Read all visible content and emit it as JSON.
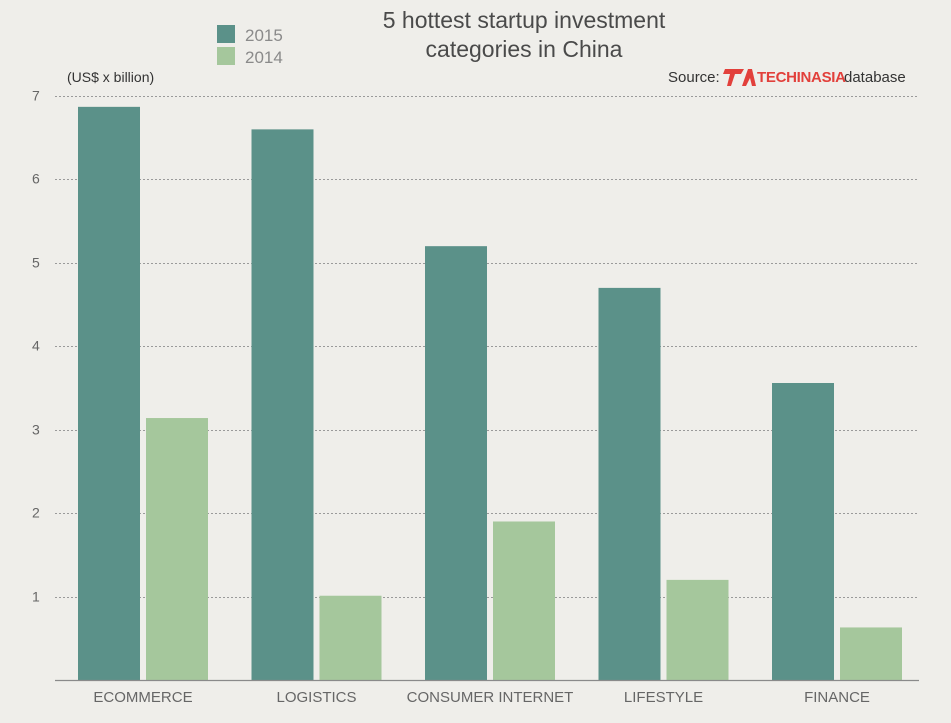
{
  "chart_data": {
    "type": "bar",
    "title_lines": [
      "5 hottest startup investment",
      "categories in China"
    ],
    "unit_label": "(US$ x billion)",
    "source": {
      "prefix": "Source:",
      "logo_text": "TECHINASIA",
      "suffix": "database"
    },
    "categories": [
      "ECOMMERCE",
      "LOGISTICS",
      "CONSUMER INTERNET",
      "LIFESTYLE",
      "FINANCE"
    ],
    "series": [
      {
        "name": "2015",
        "color": "#5b9189",
        "values": [
          6.87,
          6.6,
          5.2,
          4.7,
          3.56
        ]
      },
      {
        "name": "2014",
        "color": "#a5c79c",
        "values": [
          3.14,
          1.01,
          1.9,
          1.2,
          0.63
        ]
      }
    ],
    "yticks": [
      1,
      2,
      3,
      4,
      5,
      6,
      7
    ],
    "ylim": [
      0,
      7
    ],
    "grid": true,
    "legend_position": "top-left"
  }
}
